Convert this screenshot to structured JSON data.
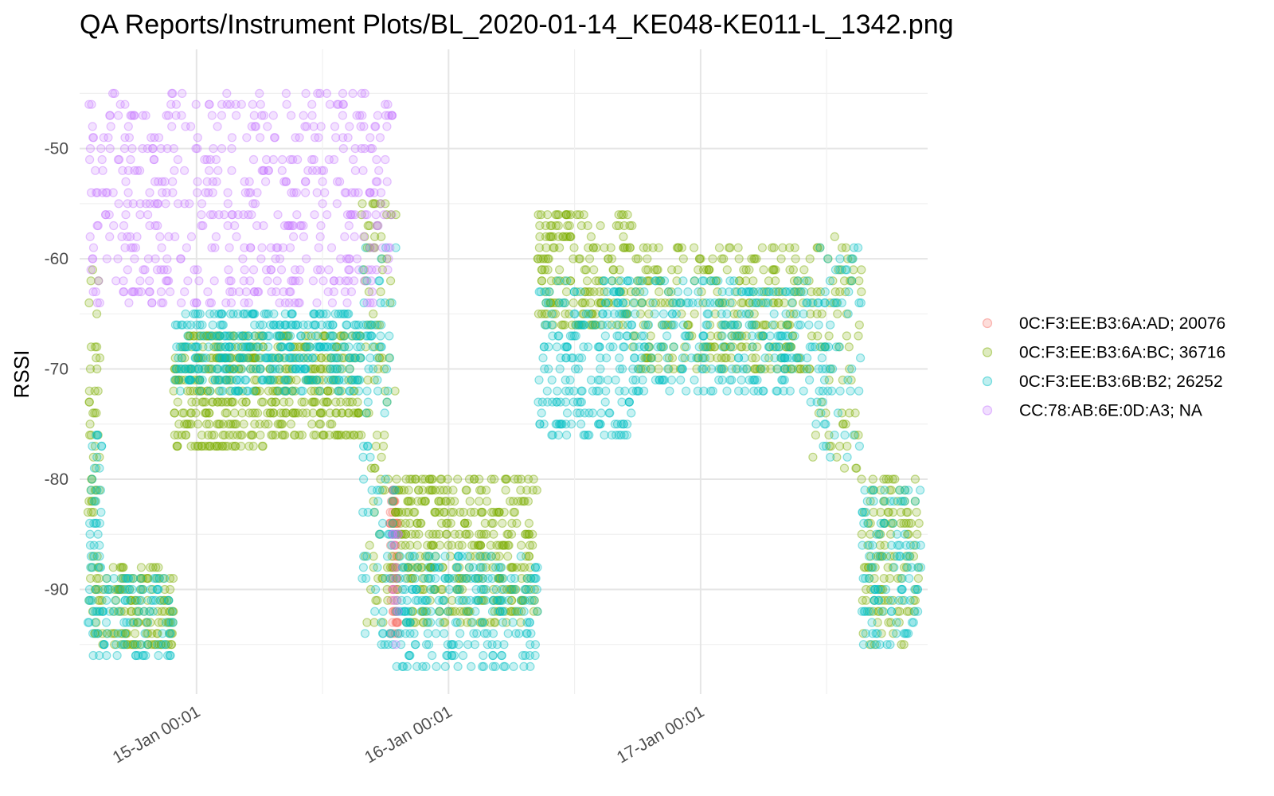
{
  "chart_data": {
    "type": "scatter",
    "title": "QA Reports/Instrument Plots/BL_2020-01-14_KE048-KE011-L_1342.png",
    "ylabel": "RSSI",
    "xlabel": "",
    "x_ticks": [
      "15-Jan 00:01",
      "16-Jan 00:01",
      "17-Jan 00:01"
    ],
    "x_range": [
      "2020-01-14 12:53",
      "2020-01-17 21:38"
    ],
    "y_ticks": [
      -50,
      -60,
      -70,
      -80,
      -90
    ],
    "ylim": [
      -99.5,
      -41
    ],
    "grid": true,
    "legend_position": "right",
    "series": [
      {
        "name": "0C:F3:EE:B3:6A:AD; 20076",
        "color": "#F8766D",
        "clusters": [
          {
            "x": [
              "2020-01-15 18:24",
              "2020-01-15 19:12"
            ],
            "y": [
              -94,
              -81
            ],
            "n": 70
          }
        ]
      },
      {
        "name": "0C:F3:EE:B3:6A:BC; 36716",
        "color": "#7CAE00",
        "clusters": [
          {
            "x": [
              "2020-01-14 13:40",
              "2020-01-14 14:50"
            ],
            "y": [
              -94,
              -60
            ],
            "n": 60
          },
          {
            "x": [
              "2020-01-14 14:50",
              "2020-01-14 21:50"
            ],
            "y": [
              -95,
              -88
            ],
            "n": 130
          },
          {
            "x": [
              "2020-01-14 21:50",
              "2020-01-15 06:30"
            ],
            "y": [
              -77,
              -67
            ],
            "n": 260
          },
          {
            "x": [
              "2020-01-15 06:30",
              "2020-01-15 15:40"
            ],
            "y": [
              -76,
              -67
            ],
            "n": 220
          },
          {
            "x": [
              "2020-01-15 15:40",
              "2020-01-15 19:00"
            ],
            "y": [
              -93,
              -55
            ],
            "n": 90
          },
          {
            "x": [
              "2020-01-15 19:00",
              "2020-01-16 08:30"
            ],
            "y": [
              -93,
              -80
            ],
            "n": 380
          },
          {
            "x": [
              "2020-01-16 08:30",
              "2020-01-16 17:30"
            ],
            "y": [
              -66,
              -56
            ],
            "n": 180
          },
          {
            "x": [
              "2020-01-16 17:30",
              "2020-01-17 10:30"
            ],
            "y": [
              -70,
              -59
            ],
            "n": 280
          },
          {
            "x": [
              "2020-01-17 10:30",
              "2020-01-17 15:20"
            ],
            "y": [
              -79,
              -58
            ],
            "n": 70
          },
          {
            "x": [
              "2020-01-17 15:20",
              "2020-01-17 21:00"
            ],
            "y": [
              -95,
              -80
            ],
            "n": 120
          }
        ]
      },
      {
        "name": "0C:F3:EE:B3:6B:B2; 26252",
        "color": "#00BFC4",
        "clusters": [
          {
            "x": [
              "2020-01-14 13:40",
              "2020-01-14 15:00"
            ],
            "y": [
              -96,
              -76
            ],
            "n": 50
          },
          {
            "x": [
              "2020-01-14 15:00",
              "2020-01-14 21:50"
            ],
            "y": [
              -96,
              -89
            ],
            "n": 90
          },
          {
            "x": [
              "2020-01-14 21:50",
              "2020-01-15 15:40"
            ],
            "y": [
              -72,
              -65
            ],
            "n": 360
          },
          {
            "x": [
              "2020-01-15 15:40",
              "2020-01-15 19:00"
            ],
            "y": [
              -95,
              -59
            ],
            "n": 90
          },
          {
            "x": [
              "2020-01-15 19:00",
              "2020-01-16 08:30"
            ],
            "y": [
              -97,
              -87
            ],
            "n": 240
          },
          {
            "x": [
              "2020-01-16 08:30",
              "2020-01-16 17:30"
            ],
            "y": [
              -76,
              -62
            ],
            "n": 200
          },
          {
            "x": [
              "2020-01-16 17:30",
              "2020-01-17 10:30"
            ],
            "y": [
              -72,
              -62
            ],
            "n": 260
          },
          {
            "x": [
              "2020-01-17 10:30",
              "2020-01-17 15:20"
            ],
            "y": [
              -78,
              -59
            ],
            "n": 70
          },
          {
            "x": [
              "2020-01-17 15:20",
              "2020-01-17 21:00"
            ],
            "y": [
              -95,
              -81
            ],
            "n": 110
          }
        ]
      },
      {
        "name": "CC:78:AB:6E:0D:A3; NA",
        "color": "#C77CFF",
        "clusters": [
          {
            "x": [
              "2020-01-14 13:40",
              "2020-01-15 18:40"
            ],
            "y": [
              -64,
              -45
            ],
            "n": 520
          },
          {
            "x": [
              "2020-01-15 18:40",
              "2020-01-15 19:20"
            ],
            "y": [
              -95,
              -85
            ],
            "n": 12
          }
        ]
      }
    ]
  }
}
